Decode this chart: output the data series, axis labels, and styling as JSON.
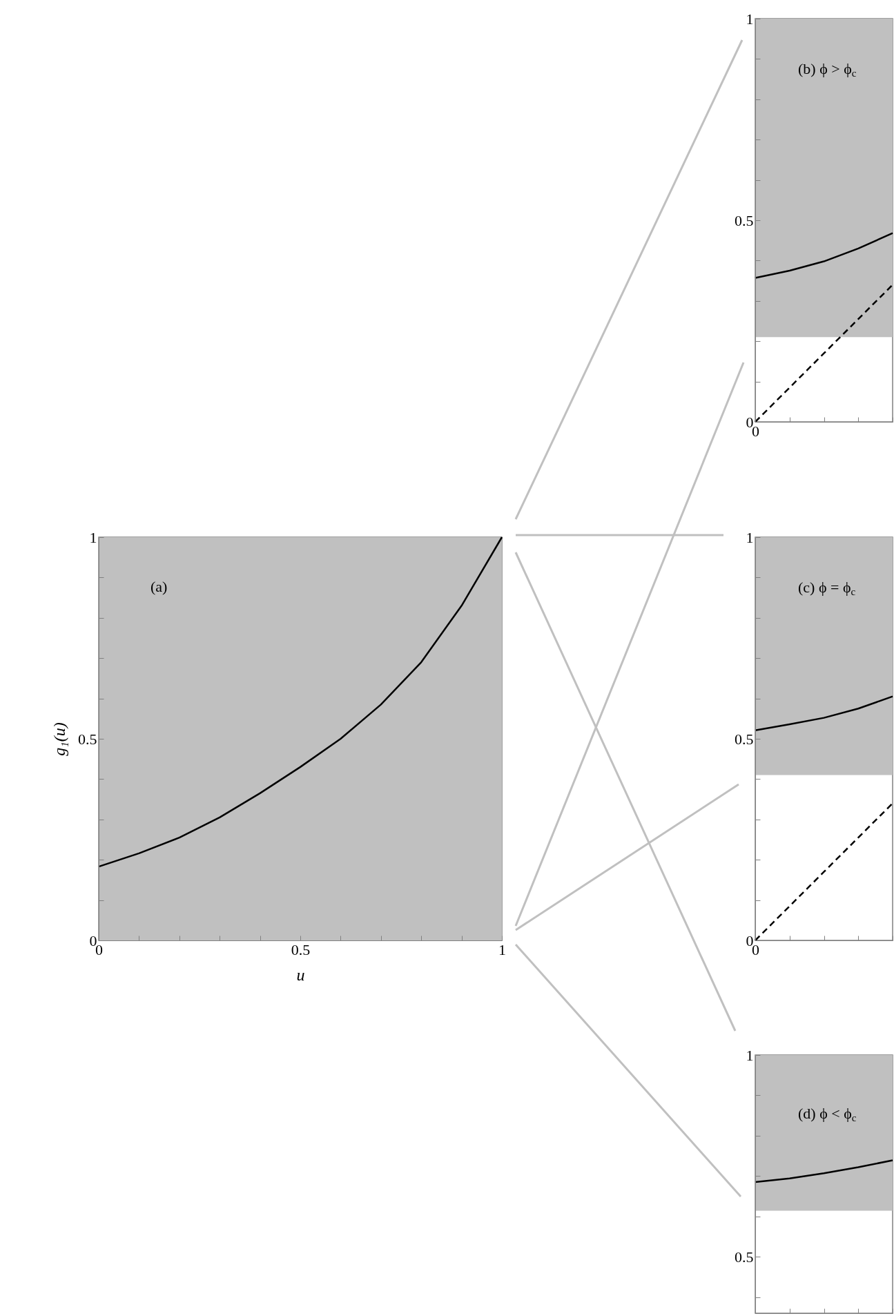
{
  "chart_data": [
    {
      "type": "line",
      "xlabel": "u",
      "ylabel": "g₁(u)",
      "annotations": [
        "(a)"
      ],
      "xlim": [
        0,
        1
      ],
      "ylim": [
        0,
        1
      ],
      "xticks": [
        0,
        {
          "value": 0.1,
          "label": null
        },
        {
          "value": 0.2,
          "label": null
        },
        {
          "value": 0.3,
          "label": null
        },
        {
          "value": 0.4,
          "label": null
        },
        0.5,
        {
          "value": 0.6,
          "label": null
        },
        {
          "value": 0.7,
          "label": null
        },
        {
          "value": 0.8,
          "label": null
        },
        {
          "value": 0.9,
          "label": null
        },
        1
      ],
      "yticks": [
        0,
        {
          "value": 0.1,
          "label": null
        },
        {
          "value": 0.2,
          "label": null
        },
        {
          "value": 0.3,
          "label": null
        },
        {
          "value": 0.4,
          "label": null
        },
        0.5,
        {
          "value": 0.6,
          "label": null
        },
        {
          "value": 0.7,
          "label": null
        },
        {
          "value": 0.8,
          "label": null
        },
        {
          "value": 0.9,
          "label": null
        },
        1
      ],
      "bands": [
        {
          "axis": "y",
          "from": 0,
          "to": 1,
          "color": "#c0c0c0"
        }
      ],
      "series": [
        {
          "color": "#000000",
          "x": [
            0,
            0.1,
            0.2,
            0.3,
            0.4,
            0.5,
            0.6,
            0.7,
            0.8,
            0.9,
            1
          ],
          "values": [
            0.183,
            0.216,
            0.255,
            0.305,
            0.365,
            0.43,
            0.5,
            0.585,
            0.69,
            0.83,
            1
          ]
        }
      ]
    },
    {
      "type": "line",
      "annotations": [
        "(b) ϕ > ϕ$_{c}$"
      ],
      "categories": [
        "0",
        null,
        null,
        null,
        null
      ],
      "ylim": [
        0,
        1
      ],
      "yticks": [
        0,
        {
          "value": 0.1,
          "label": null
        },
        {
          "value": 0.2,
          "label": null
        },
        {
          "value": 0.3,
          "label": null
        },
        {
          "value": 0.4,
          "label": null
        },
        0.5,
        {
          "value": 0.6,
          "label": null
        },
        {
          "value": 0.7,
          "label": null
        },
        {
          "value": 0.8,
          "label": null
        },
        {
          "value": 0.9,
          "label": null
        },
        1
      ],
      "bands": [
        {
          "axis": "y",
          "from": 0.21,
          "to": 1,
          "color": "#c0c0c0"
        }
      ],
      "series": [
        {
          "color": "#000000",
          "values": [
            0.357,
            0.375,
            0.398,
            0.43,
            0.468
          ]
        },
        {
          "color": "#000000",
          "line_style": "dashed",
          "values": [
            0,
            0.085,
            0.17,
            0.255,
            0.34
          ]
        }
      ]
    },
    {
      "type": "line",
      "annotations": [
        "(c) ϕ = ϕ$_{c}$"
      ],
      "categories": [
        "0",
        null,
        null,
        null,
        null
      ],
      "ylim": [
        0,
        1
      ],
      "yticks": [
        0,
        {
          "value": 0.1,
          "label": null
        },
        {
          "value": 0.2,
          "label": null
        },
        {
          "value": 0.3,
          "label": null
        },
        {
          "value": 0.4,
          "label": null
        },
        0.5,
        {
          "value": 0.6,
          "label": null
        },
        {
          "value": 0.7,
          "label": null
        },
        {
          "value": 0.8,
          "label": null
        },
        {
          "value": 0.9,
          "label": null
        },
        1
      ],
      "bands": [
        {
          "axis": "y",
          "from": 0.41,
          "to": 1,
          "color": "#c0c0c0"
        }
      ],
      "series": [
        {
          "color": "#000000",
          "values": [
            0.521,
            0.536,
            0.552,
            0.575,
            0.605
          ]
        },
        {
          "color": "#000000",
          "line_style": "dashed",
          "values": [
            0,
            0.085,
            0.17,
            0.255,
            0.34
          ]
        }
      ]
    },
    {
      "type": "line",
      "annotations": [
        "(d) ϕ < ϕ$_{c}$"
      ],
      "categories": [
        null,
        null,
        null,
        null,
        null
      ],
      "ylim": [
        0.36,
        1
      ],
      "yticks": [
        {
          "value": 0.4,
          "label": null
        },
        0.5,
        {
          "value": 0.6,
          "label": null
        },
        {
          "value": 0.7,
          "label": null
        },
        {
          "value": 0.8,
          "label": null
        },
        {
          "value": 0.9,
          "label": null
        },
        1
      ],
      "bands": [
        {
          "axis": "y",
          "from": 0.614,
          "to": 1,
          "color": "#c0c0c0"
        }
      ],
      "series": [
        {
          "color": "#000000",
          "values": [
            0.685,
            0.694,
            0.707,
            0.722,
            0.739
          ]
        }
      ]
    }
  ]
}
